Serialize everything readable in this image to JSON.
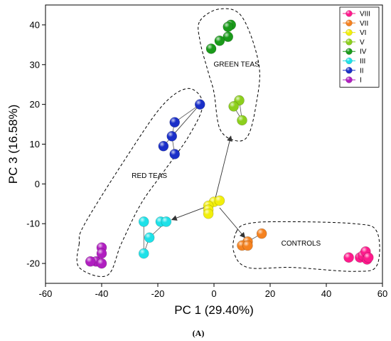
{
  "chart_data": {
    "type": "scatter",
    "xlabel": "PC 1 (29.40%)",
    "ylabel": "PC 3 (16.58%)",
    "xlim": [
      -60,
      60
    ],
    "ylim": [
      -25,
      45
    ],
    "xticks": [
      -60,
      -40,
      -20,
      0,
      20,
      40,
      60
    ],
    "yticks": [
      -20,
      -10,
      0,
      10,
      20,
      30,
      40
    ],
    "legend_placement": "top-right",
    "panel_label": "(A)",
    "series": [
      {
        "name": "VIII",
        "color": "#ff1a8c",
        "points": [
          [
            48,
            -18.5
          ],
          [
            52,
            -18.5
          ],
          [
            53,
            -18
          ],
          [
            54,
            -17
          ],
          [
            54.5,
            -19
          ],
          [
            55,
            -18.5
          ]
        ]
      },
      {
        "name": "VII",
        "color": "#f58220",
        "points": [
          [
            17,
            -12.5
          ],
          [
            12,
            -14.5
          ],
          [
            10,
            -15.5
          ],
          [
            12,
            -15.5
          ]
        ]
      },
      {
        "name": "VI",
        "color": "#f2ef0c",
        "points": [
          [
            0,
            -4.5
          ],
          [
            2,
            -4.2
          ],
          [
            -2,
            -5.5
          ],
          [
            -2,
            -6.5
          ],
          [
            -2,
            -7.5
          ]
        ]
      },
      {
        "name": "V",
        "color": "#8ccf1c",
        "points": [
          [
            9,
            21
          ],
          [
            7,
            19.5
          ],
          [
            10,
            16
          ]
        ]
      },
      {
        "name": "IV",
        "color": "#1a9a1a",
        "points": [
          [
            6,
            40
          ],
          [
            5,
            39.5
          ],
          [
            5,
            37
          ],
          [
            2,
            36
          ],
          [
            -1,
            34
          ]
        ]
      },
      {
        "name": "III",
        "color": "#1ee1e8",
        "points": [
          [
            -25,
            -9.5
          ],
          [
            -19,
            -9.5
          ],
          [
            -17,
            -9.5
          ],
          [
            -23,
            -13.5
          ],
          [
            -25,
            -17.5
          ]
        ]
      },
      {
        "name": "II",
        "color": "#1a2fc8",
        "points": [
          [
            -5,
            20
          ],
          [
            -14,
            15.5
          ],
          [
            -15,
            12
          ],
          [
            -18,
            9.5
          ],
          [
            -14,
            7.5
          ]
        ]
      },
      {
        "name": "I",
        "color": "#b01fc0",
        "points": [
          [
            -40,
            -16
          ],
          [
            -42,
            -19.5
          ],
          [
            -40,
            -20
          ],
          [
            -44,
            -19.5
          ],
          [
            -40,
            -17.5
          ]
        ]
      }
    ],
    "connectors": [
      {
        "series": "II",
        "segments": [
          [
            [
              -5,
              20
            ],
            [
              -14,
              15.5
            ]
          ],
          [
            [
              -5,
              20
            ],
            [
              -15,
              12
            ]
          ],
          [
            [
              -5,
              20
            ],
            [
              -18,
              9.5
            ]
          ],
          [
            [
              -15,
              12
            ],
            [
              -14,
              7.5
            ]
          ],
          [
            [
              -14,
              15.5
            ],
            [
              -15,
              12
            ]
          ]
        ]
      },
      {
        "series": "III",
        "segments": [
          [
            [
              -25,
              -9.5
            ],
            [
              -25,
              -17.5
            ]
          ],
          [
            [
              -17,
              -9.5
            ],
            [
              -23,
              -13.5
            ]
          ],
          [
            [
              -23,
              -13.5
            ],
            [
              -25,
              -17.5
            ]
          ]
        ]
      },
      {
        "series": "V",
        "segments": [
          [
            [
              9,
              21
            ],
            [
              10,
              16
            ]
          ],
          [
            [
              7,
              19.5
            ],
            [
              10,
              16
            ]
          ]
        ]
      },
      {
        "series": "VII",
        "segments": [
          [
            [
              17,
              -12.5
            ],
            [
              12,
              -14.5
            ]
          ],
          [
            [
              12,
              -14.5
            ],
            [
              10,
              -15.5
            ]
          ]
        ]
      }
    ],
    "arrows": [
      {
        "from": [
          0,
          -5
        ],
        "to": [
          -15,
          -9
        ]
      },
      {
        "from": [
          0,
          -5
        ],
        "to": [
          6,
          12
        ]
      },
      {
        "from": [
          2,
          -6
        ],
        "to": [
          11,
          -13.5
        ]
      }
    ],
    "group_annotations": [
      {
        "label": "GREEN TEAS",
        "at": [
          8,
          29.5
        ],
        "outline": [
          [
            -5,
            41
          ],
          [
            2,
            44
          ],
          [
            10,
            42
          ],
          [
            16,
            30
          ],
          [
            15,
            20
          ],
          [
            12,
            12
          ],
          [
            7,
            11
          ],
          [
            2,
            14
          ],
          [
            0,
            23
          ],
          [
            -2,
            28
          ],
          [
            -5,
            36
          ]
        ]
      },
      {
        "label": "RED TEAS",
        "at": [
          -23,
          1.5
        ],
        "outline": [
          [
            -48,
            -15
          ],
          [
            -48,
            -21
          ],
          [
            -38,
            -23
          ],
          [
            -33,
            -15
          ],
          [
            -26,
            -5
          ],
          [
            -18,
            3
          ],
          [
            -9,
            12
          ],
          [
            -4,
            20
          ],
          [
            -9,
            24
          ],
          [
            -18,
            20
          ],
          [
            -30,
            8
          ],
          [
            -46,
            -10
          ]
        ]
      },
      {
        "label": "CONTROLS",
        "at": [
          31,
          -15.5
        ],
        "outline": [
          [
            8,
            -12
          ],
          [
            12,
            -10
          ],
          [
            24,
            -9.5
          ],
          [
            50,
            -10
          ],
          [
            58,
            -12
          ],
          [
            58,
            -20.5
          ],
          [
            50,
            -22
          ],
          [
            28,
            -21
          ],
          [
            12,
            -21
          ],
          [
            7,
            -17
          ]
        ]
      }
    ]
  }
}
